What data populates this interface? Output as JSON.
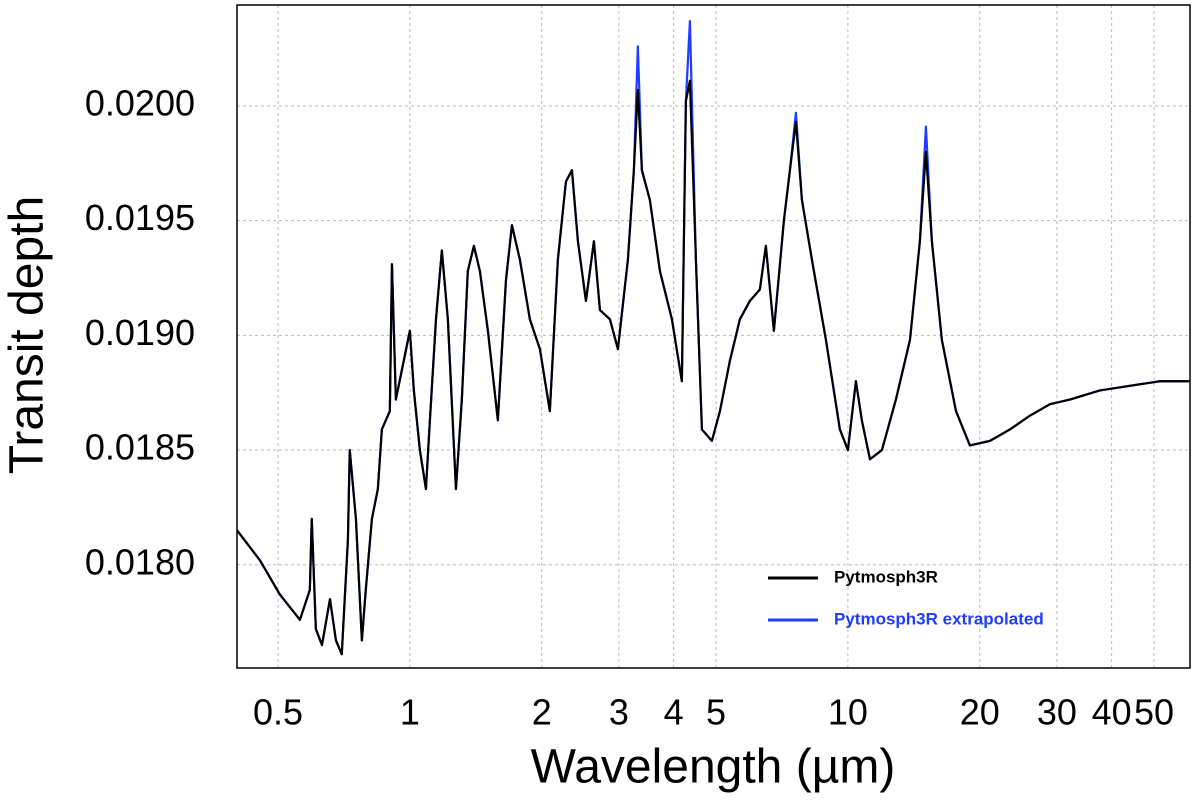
{
  "chart_data": {
    "type": "line",
    "xlabel": "Wavelength (µm)",
    "ylabel": "Transit depth",
    "xscale": "log",
    "grid": true,
    "legend": "lower right",
    "xlim": [
      0.403,
      60.4
    ],
    "ylim": [
      0.01755,
      0.02044
    ],
    "xticks": [
      0.5,
      1,
      2,
      3,
      4,
      5,
      10,
      20,
      30,
      40,
      50
    ],
    "yticks": [
      {
        "value": 0.018,
        "label": "0.0180"
      },
      {
        "value": 0.0185,
        "label": "0.0185"
      },
      {
        "value": 0.019,
        "label": "0.0190"
      },
      {
        "value": 0.0195,
        "label": "0.0195"
      },
      {
        "value": 0.02,
        "label": "0.0200"
      }
    ],
    "x": [
      0.403,
      0.4545,
      0.505,
      0.561,
      0.591,
      0.597,
      0.61,
      0.63,
      0.657,
      0.678,
      0.699,
      0.722,
      0.729,
      0.753,
      0.777,
      0.793,
      0.819,
      0.845,
      0.863,
      0.9,
      0.91,
      0.929,
      0.959,
      1.0,
      1.021,
      1.054,
      1.088,
      1.111,
      1.147,
      1.183,
      1.221,
      1.274,
      1.314,
      1.356,
      1.4,
      1.445,
      1.507,
      1.588,
      1.657,
      1.71,
      1.783,
      1.879,
      1.981,
      2.087,
      2.177,
      2.271,
      2.344,
      2.419,
      2.523,
      2.631,
      2.716,
      2.862,
      2.985,
      3.146,
      3.246,
      3.315,
      3.386,
      3.531,
      3.723,
      3.965,
      4.178,
      4.267,
      4.358,
      4.498,
      4.642,
      4.892,
      5.104,
      5.379,
      5.668,
      5.973,
      6.296,
      6.497,
      6.777,
      7.143,
      7.373,
      7.609,
      7.853,
      8.277,
      8.91,
      9.588,
      10.0,
      10.43,
      10.76,
      11.23,
      11.96,
      12.87,
      13.86,
      14.6,
      15.07,
      15.55,
      16.39,
      17.65,
      18.99,
      21.1,
      23.44,
      26.04,
      28.93,
      32.13,
      37.61,
      44.04,
      51.57,
      60.38
    ],
    "series": [
      {
        "name": "Pytmosph3R extrapolated",
        "color": "#1f3cff",
        "values": [
          0.01815,
          0.01802,
          0.01787,
          0.01776,
          0.01789,
          0.0182,
          0.01772,
          0.01765,
          0.01785,
          0.01767,
          0.01761,
          0.01811,
          0.0185,
          0.0182,
          0.01767,
          0.01789,
          0.0182,
          0.01833,
          0.01859,
          0.01867,
          0.01931,
          0.01872,
          0.01885,
          0.01902,
          0.01876,
          0.0185,
          0.01833,
          0.01863,
          0.01907,
          0.01937,
          0.01907,
          0.01833,
          0.01872,
          0.01928,
          0.01939,
          0.01928,
          0.01902,
          0.01863,
          0.01924,
          0.01948,
          0.01933,
          0.01907,
          0.01894,
          0.01867,
          0.01933,
          0.01967,
          0.01972,
          0.01941,
          0.01915,
          0.01941,
          0.01911,
          0.01907,
          0.01894,
          0.01933,
          0.01972,
          0.02026,
          0.01972,
          0.01959,
          0.01928,
          0.01907,
          0.0188,
          0.02002,
          0.02037,
          0.01933,
          0.01859,
          0.01854,
          0.01867,
          0.01889,
          0.01907,
          0.01915,
          0.0192,
          0.01939,
          0.01902,
          0.0195,
          0.01972,
          0.01997,
          0.01959,
          0.01933,
          0.01898,
          0.01859,
          0.0185,
          0.0188,
          0.01863,
          0.01846,
          0.0185,
          0.01872,
          0.01898,
          0.01941,
          0.01991,
          0.01941,
          0.01898,
          0.01867,
          0.01852,
          0.01854,
          0.01859,
          0.01865,
          0.0187,
          0.01872,
          0.01876,
          0.01878,
          0.0188,
          0.0188
        ]
      },
      {
        "name": "Pytmosph3R",
        "color": "#000000",
        "values": [
          0.01815,
          0.01802,
          0.01787,
          0.01776,
          0.01789,
          0.0182,
          0.01772,
          0.01765,
          0.01785,
          0.01767,
          0.01761,
          0.01811,
          0.0185,
          0.0182,
          0.01767,
          0.01789,
          0.0182,
          0.01833,
          0.01859,
          0.01867,
          0.01931,
          0.01872,
          0.01885,
          0.01902,
          0.01876,
          0.0185,
          0.01833,
          0.01863,
          0.01907,
          0.01937,
          0.01907,
          0.01833,
          0.01872,
          0.01928,
          0.01939,
          0.01928,
          0.01902,
          0.01863,
          0.01924,
          0.01948,
          0.01933,
          0.01907,
          0.01894,
          0.01867,
          0.01933,
          0.01967,
          0.01972,
          0.01941,
          0.01915,
          0.01941,
          0.01911,
          0.01907,
          0.01894,
          0.01933,
          0.01972,
          0.02007,
          0.01972,
          0.01959,
          0.01928,
          0.01907,
          0.0188,
          0.02002,
          0.02011,
          0.01933,
          0.01859,
          0.01854,
          0.01867,
          0.01889,
          0.01907,
          0.01915,
          0.0192,
          0.01939,
          0.01902,
          0.0195,
          0.01972,
          0.01993,
          0.01959,
          0.01933,
          0.01898,
          0.01859,
          0.0185,
          0.0188,
          0.01863,
          0.01846,
          0.0185,
          0.01872,
          0.01898,
          0.01941,
          0.0198,
          0.01941,
          0.01898,
          0.01867,
          0.01852,
          0.01854,
          0.01859,
          0.01865,
          0.0187,
          0.01872,
          0.01876,
          0.01878,
          0.0188,
          0.0188
        ]
      }
    ]
  }
}
